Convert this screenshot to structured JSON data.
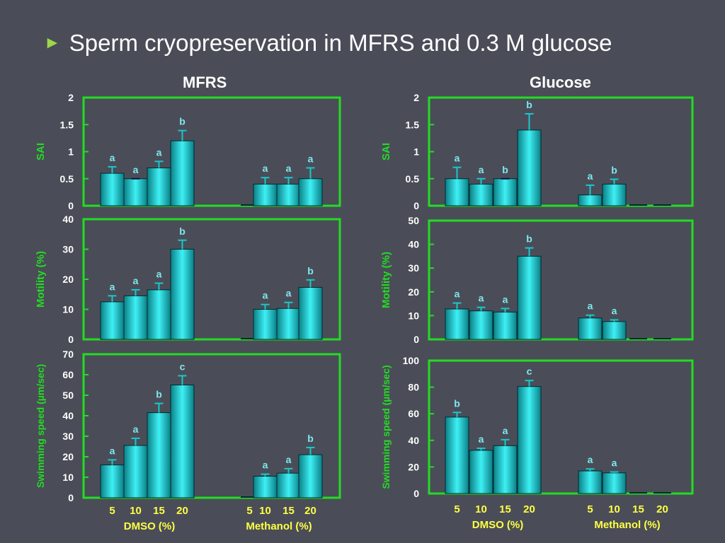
{
  "slide": {
    "bullet": "►",
    "title": "Sperm cryopreservation in MFRS and 0.3 M glucose",
    "mfrs_heading": "MFRS",
    "glucose_heading": "Glucose"
  },
  "colors": {
    "background": "#4a4d58",
    "axis": "#22dd22",
    "bar": "#19c8cc",
    "bar_edge": "#002a2c",
    "tick_label": "#ffffff",
    "letter": "#7fe8ee",
    "x_label": "#ffff44"
  },
  "x_axis": {
    "categories": [
      "5",
      "10",
      "15",
      "20",
      "5",
      "10",
      "15",
      "20"
    ],
    "group_labels": [
      "DMSO (%)",
      "Methanol (%)"
    ]
  },
  "chart_data": [
    {
      "type": "bar",
      "panel": "MFRS SAI",
      "ylabel": "SAI",
      "ylim": [
        0,
        2
      ],
      "yticks": [
        "0",
        "0.5",
        "1",
        "1.5",
        "2"
      ],
      "categories": [
        "5",
        "10",
        "15",
        "20",
        "5",
        "10",
        "15",
        "20"
      ],
      "values": [
        0.6,
        0.5,
        0.7,
        1.2,
        0,
        0.4,
        0.4,
        0.5
      ],
      "errors": [
        0.12,
        0,
        0.12,
        0.19,
        0,
        0.12,
        0.12,
        0.2
      ],
      "letters": [
        "a",
        "a",
        "a",
        "b",
        "",
        "a",
        "a",
        "a"
      ]
    },
    {
      "type": "bar",
      "panel": "MFRS Motility",
      "ylabel": "Motility (%)",
      "ylim": [
        0,
        40
      ],
      "yticks": [
        "0",
        "10",
        "20",
        "30",
        "40"
      ],
      "categories": [
        "5",
        "10",
        "15",
        "20",
        "5",
        "10",
        "15",
        "20"
      ],
      "values": [
        12.5,
        14.5,
        16.5,
        30,
        0,
        10,
        10.3,
        17.3
      ],
      "errors": [
        2,
        2,
        2.2,
        3,
        0,
        1.6,
        2,
        2.5
      ],
      "letters": [
        "a",
        "a",
        "a",
        "b",
        "",
        "a",
        "a",
        "b"
      ]
    },
    {
      "type": "bar",
      "panel": "MFRS Swimming speed",
      "ylabel": "Swimming speed (µm/sec)",
      "ylim": [
        0,
        70
      ],
      "yticks": [
        "0",
        "10",
        "20",
        "30",
        "40",
        "50",
        "60",
        "70"
      ],
      "categories": [
        "5",
        "10",
        "15",
        "20",
        "5",
        "10",
        "15",
        "20"
      ],
      "values": [
        16,
        25.5,
        41.5,
        55,
        0,
        10.5,
        12,
        21
      ],
      "errors": [
        2.5,
        3.5,
        4.5,
        4.5,
        0,
        1,
        2.2,
        3.5
      ],
      "letters": [
        "a",
        "a",
        "b",
        "c",
        "",
        "a",
        "a",
        "b"
      ]
    },
    {
      "type": "bar",
      "panel": "Glucose SAI",
      "ylabel": "SAI",
      "ylim": [
        0,
        2
      ],
      "yticks": [
        "0",
        "0.5",
        "1",
        "1.5",
        "2"
      ],
      "categories": [
        "5",
        "10",
        "15",
        "20",
        "5",
        "10",
        "15",
        "20"
      ],
      "values": [
        0.5,
        0.4,
        0.5,
        1.4,
        0.2,
        0.4,
        0,
        0
      ],
      "errors": [
        0.21,
        0.1,
        0,
        0.3,
        0.18,
        0.09,
        0,
        0
      ],
      "letters": [
        "a",
        "a",
        "b",
        "b",
        "a",
        "b",
        "",
        ""
      ]
    },
    {
      "type": "bar",
      "panel": "Glucose Motility",
      "ylabel": "Motility (%)",
      "ylim": [
        0,
        50
      ],
      "yticks": [
        "0",
        "10",
        "20",
        "30",
        "40",
        "50"
      ],
      "categories": [
        "5",
        "10",
        "15",
        "20",
        "5",
        "10",
        "15",
        "20"
      ],
      "values": [
        12.8,
        12,
        11.5,
        35,
        9,
        7.5,
        0,
        0
      ],
      "errors": [
        2.5,
        1.5,
        1.5,
        3.5,
        1.2,
        0.7,
        0,
        0
      ],
      "letters": [
        "a",
        "a",
        "a",
        "b",
        "a",
        "a",
        "",
        ""
      ]
    },
    {
      "type": "bar",
      "panel": "Glucose Swimming speed",
      "ylabel": "Swimming speed (µm/sec)",
      "ylim": [
        0,
        100
      ],
      "yticks": [
        "0",
        "20",
        "40",
        "60",
        "80",
        "100"
      ],
      "categories": [
        "5",
        "10",
        "15",
        "20",
        "5",
        "10",
        "15",
        "20"
      ],
      "values": [
        57.5,
        32.5,
        36,
        80.5,
        17,
        15.5,
        0,
        0
      ],
      "errors": [
        3.5,
        1.5,
        4.5,
        4.5,
        1.5,
        0.7,
        0,
        0
      ],
      "letters": [
        "b",
        "a",
        "a",
        "c",
        "a",
        "a",
        "",
        ""
      ]
    }
  ]
}
